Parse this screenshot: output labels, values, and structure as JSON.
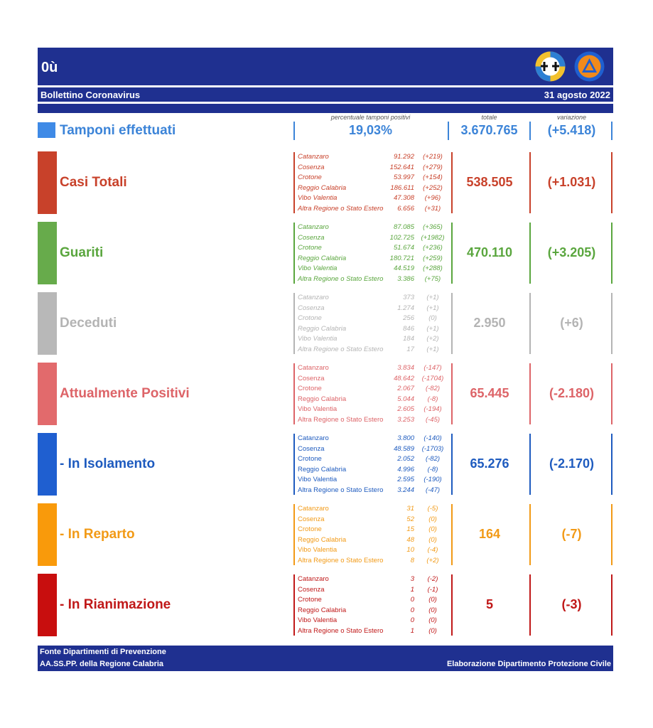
{
  "header": {
    "title": "0ù",
    "subtitle": "Bollettino Coronavirus",
    "date": "31 agosto 2022"
  },
  "columns": {
    "percent": "percentuale tamponi positivi",
    "total": "totale",
    "variation": "variazione"
  },
  "tamponi": {
    "label": "Tamponi effettuati",
    "percent": "19,03%",
    "total": "3.670.765",
    "variation": "(+5.418)",
    "color": "#3c84d8"
  },
  "sections": [
    {
      "label": "Casi Totali",
      "color": "#c8412a",
      "bar": "#c8412a",
      "total": "538.505",
      "variation": "(+1.031)",
      "italic": true,
      "rows": [
        {
          "name": "Catanzaro",
          "value": "91.292",
          "delta": "(+219)"
        },
        {
          "name": "Cosenza",
          "value": "152.641",
          "delta": "(+279)"
        },
        {
          "name": "Crotone",
          "value": "53.997",
          "delta": "(+154)"
        },
        {
          "name": "Reggio Calabria",
          "value": "186.611",
          "delta": "(+252)"
        },
        {
          "name": "Vibo Valentia",
          "value": "47.308",
          "delta": "(+96)"
        },
        {
          "name": "Altra Regione o Stato Estero",
          "value": "6.656",
          "delta": "(+31)"
        }
      ]
    },
    {
      "label": "Guariti",
      "color": "#5aa63e",
      "bar": "#67ab4b",
      "total": "470.110",
      "variation": "(+3.205)",
      "italic": true,
      "rows": [
        {
          "name": "Catanzaro",
          "value": "87.085",
          "delta": "(+365)"
        },
        {
          "name": "Cosenza",
          "value": "102.725",
          "delta": "(+1982)"
        },
        {
          "name": "Crotone",
          "value": "51.674",
          "delta": "(+236)"
        },
        {
          "name": "Reggio Calabria",
          "value": "180.721",
          "delta": "(+259)"
        },
        {
          "name": "Vibo Valentia",
          "value": "44.519",
          "delta": "(+288)"
        },
        {
          "name": "Altra Regione o Stato Estero",
          "value": "3.386",
          "delta": "(+75)"
        }
      ]
    },
    {
      "label": "Deceduti",
      "color": "#b4b4b4",
      "bar": "#b8b8b8",
      "total": "2.950",
      "variation": "(+6)",
      "italic": true,
      "rows": [
        {
          "name": "Catanzaro",
          "value": "373",
          "delta": "(+1)"
        },
        {
          "name": "Cosenza",
          "value": "1.274",
          "delta": "(+1)"
        },
        {
          "name": "Crotone",
          "value": "256",
          "delta": "(0)"
        },
        {
          "name": "Reggio Calabria",
          "value": "846",
          "delta": "(+1)"
        },
        {
          "name": "Vibo Valentia",
          "value": "184",
          "delta": "(+2)"
        },
        {
          "name": "Altra Regione o Stato Estero",
          "value": "17",
          "delta": "(+1)"
        }
      ]
    },
    {
      "label": "Attualmente Positivi",
      "color": "#dd6468",
      "bar": "#e26a6c",
      "total": "65.445",
      "variation": "(-2.180)",
      "italic": false,
      "rows": [
        {
          "name": "Catanzaro",
          "value": "3.834",
          "delta": "(-147)"
        },
        {
          "name": "Cosenza",
          "value": "48.642",
          "delta": "(-1704)"
        },
        {
          "name": "Crotone",
          "value": "2.067",
          "delta": "(-82)"
        },
        {
          "name": "Reggio Calabria",
          "value": "5.044",
          "delta": "(-8)"
        },
        {
          "name": "Vibo Valentia",
          "value": "2.605",
          "delta": "(-194)"
        },
        {
          "name": "Altra Regione o Stato Estero",
          "value": "3.253",
          "delta": "(-45)"
        }
      ]
    },
    {
      "label": " - In Isolamento",
      "color": "#1e5bbf",
      "bar": "#1f5fd0",
      "total": "65.276",
      "variation": "(-2.170)",
      "italic": false,
      "rows": [
        {
          "name": "Catanzaro",
          "value": "3.800",
          "delta": "(-140)"
        },
        {
          "name": "Cosenza",
          "value": "48.589",
          "delta": "(-1703)"
        },
        {
          "name": "Crotone",
          "value": "2.052",
          "delta": "(-82)"
        },
        {
          "name": "Reggio Calabria",
          "value": "4.996",
          "delta": "(-8)"
        },
        {
          "name": "Vibo Valentia",
          "value": "2.595",
          "delta": "(-190)"
        },
        {
          "name": "Altra Regione o Stato Estero",
          "value": "3.244",
          "delta": "(-47)"
        }
      ]
    },
    {
      "label": " - In Reparto",
      "color": "#f29a16",
      "bar": "#f99a0b",
      "total": "164",
      "variation": "(-7)",
      "italic": false,
      "rows": [
        {
          "name": "Catanzaro",
          "value": "31",
          "delta": "(-5)"
        },
        {
          "name": "Cosenza",
          "value": "52",
          "delta": "(0)"
        },
        {
          "name": "Crotone",
          "value": "15",
          "delta": "(0)"
        },
        {
          "name": "Reggio Calabria",
          "value": "48",
          "delta": "(0)"
        },
        {
          "name": "Vibo Valentia",
          "value": "10",
          "delta": "(-4)"
        },
        {
          "name": "Altra Regione o Stato Estero",
          "value": "8",
          "delta": "(+2)"
        }
      ]
    },
    {
      "label": " - In Rianimazione",
      "color": "#c01818",
      "bar": "#c80e0e",
      "total": "5",
      "variation": "(-3)",
      "italic": false,
      "rows": [
        {
          "name": "Catanzaro",
          "value": "3",
          "delta": "(-2)"
        },
        {
          "name": "Cosenza",
          "value": "1",
          "delta": "(-1)"
        },
        {
          "name": "Crotone",
          "value": "0",
          "delta": "(0)"
        },
        {
          "name": "Reggio Calabria",
          "value": "0",
          "delta": "(0)"
        },
        {
          "name": "Vibo Valentia",
          "value": "0",
          "delta": "(0)"
        },
        {
          "name": "Altra Regione o Stato Estero",
          "value": "1",
          "delta": "(0)"
        }
      ]
    }
  ],
  "footer": {
    "line1": "Fonte Dipartimenti di Prevenzione",
    "line2": "AA.SS.PP.  della Regione Calabria",
    "right": "Elaborazione Dipartimento Protezione Civile"
  }
}
